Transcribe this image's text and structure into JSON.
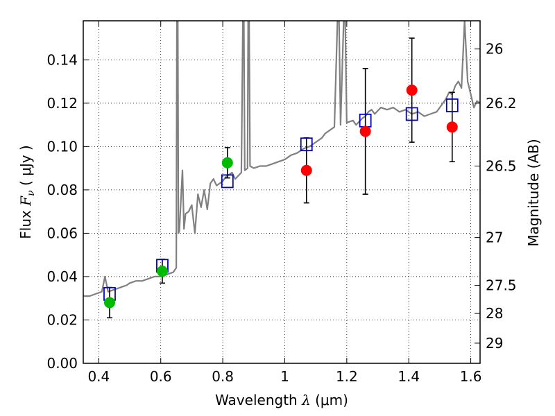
{
  "chart_data": {
    "type": "scatter",
    "xlabel": "Wavelength  λ (μm)",
    "ylabel": "Flux  F_ν  ( μJy )",
    "ylabel_right": "Magnitude (AB)",
    "xlim": [
      0.35,
      1.63
    ],
    "ylim": [
      0.0,
      0.158
    ],
    "grid": true,
    "x_ticks": [
      0.4,
      0.6,
      0.8,
      1.0,
      1.2,
      1.4,
      1.6
    ],
    "x_tick_labels": [
      "0.4",
      "0.6",
      "0.8",
      "1",
      "1.2",
      "1.4",
      "1.6"
    ],
    "y_ticks": [
      0.0,
      0.02,
      0.04,
      0.06,
      0.08,
      0.1,
      0.12,
      0.14
    ],
    "y_tick_labels": [
      "0.00",
      "0.02",
      "0.04",
      "0.06",
      "0.08",
      "0.10",
      "0.12",
      "0.14"
    ],
    "right_ticks": [
      {
        "label": "26",
        "flux": 0.145
      },
      {
        "label": "26.2",
        "flux": 0.12
      },
      {
        "label": "26.5",
        "flux": 0.091
      },
      {
        "label": "27",
        "flux": 0.058
      },
      {
        "label": "27.5",
        "flux": 0.036
      },
      {
        "label": "28",
        "flux": 0.023
      },
      {
        "label": "29",
        "flux": 0.0093
      }
    ],
    "model_spectrum": {
      "color": "#808080",
      "points": [
        [
          0.35,
          0.031
        ],
        [
          0.37,
          0.031
        ],
        [
          0.39,
          0.032
        ],
        [
          0.41,
          0.033
        ],
        [
          0.42,
          0.04
        ],
        [
          0.43,
          0.033
        ],
        [
          0.45,
          0.034
        ],
        [
          0.47,
          0.035
        ],
        [
          0.49,
          0.036
        ],
        [
          0.5,
          0.037
        ],
        [
          0.52,
          0.038
        ],
        [
          0.54,
          0.038
        ],
        [
          0.56,
          0.039
        ],
        [
          0.58,
          0.04
        ],
        [
          0.6,
          0.04
        ],
        [
          0.62,
          0.041
        ],
        [
          0.64,
          0.042
        ],
        [
          0.65,
          0.044
        ],
        [
          0.652,
          0.158
        ],
        [
          0.655,
          0.158
        ],
        [
          0.657,
          0.06
        ],
        [
          0.66,
          0.061
        ],
        [
          0.67,
          0.089
        ],
        [
          0.675,
          0.062
        ],
        [
          0.68,
          0.069
        ],
        [
          0.69,
          0.07
        ],
        [
          0.7,
          0.073
        ],
        [
          0.71,
          0.06
        ],
        [
          0.72,
          0.078
        ],
        [
          0.73,
          0.072
        ],
        [
          0.74,
          0.08
        ],
        [
          0.75,
          0.071
        ],
        [
          0.76,
          0.083
        ],
        [
          0.77,
          0.085
        ],
        [
          0.78,
          0.082
        ],
        [
          0.8,
          0.084
        ],
        [
          0.81,
          0.086
        ],
        [
          0.83,
          0.088
        ],
        [
          0.84,
          0.085
        ],
        [
          0.86,
          0.088
        ],
        [
          0.865,
          0.158
        ],
        [
          0.868,
          0.158
        ],
        [
          0.871,
          0.089
        ],
        [
          0.88,
          0.09
        ],
        [
          0.882,
          0.158
        ],
        [
          0.885,
          0.158
        ],
        [
          0.888,
          0.091
        ],
        [
          0.9,
          0.09
        ],
        [
          0.92,
          0.091
        ],
        [
          0.94,
          0.091
        ],
        [
          0.96,
          0.092
        ],
        [
          0.98,
          0.093
        ],
        [
          1.0,
          0.094
        ],
        [
          1.02,
          0.096
        ],
        [
          1.04,
          0.097
        ],
        [
          1.06,
          0.099
        ],
        [
          1.08,
          0.1
        ],
        [
          1.1,
          0.102
        ],
        [
          1.12,
          0.104
        ],
        [
          1.13,
          0.106
        ],
        [
          1.15,
          0.108
        ],
        [
          1.16,
          0.109
        ],
        [
          1.17,
          0.158
        ],
        [
          1.175,
          0.158
        ],
        [
          1.18,
          0.11
        ],
        [
          1.19,
          0.158
        ],
        [
          1.195,
          0.158
        ],
        [
          1.2,
          0.111
        ],
        [
          1.22,
          0.112
        ],
        [
          1.23,
          0.11
        ],
        [
          1.25,
          0.113
        ],
        [
          1.26,
          0.114
        ],
        [
          1.27,
          0.116
        ],
        [
          1.28,
          0.117
        ],
        [
          1.29,
          0.115
        ],
        [
          1.31,
          0.118
        ],
        [
          1.33,
          0.117
        ],
        [
          1.35,
          0.118
        ],
        [
          1.37,
          0.116
        ],
        [
          1.39,
          0.117
        ],
        [
          1.41,
          0.115
        ],
        [
          1.43,
          0.116
        ],
        [
          1.45,
          0.114
        ],
        [
          1.47,
          0.115
        ],
        [
          1.49,
          0.116
        ],
        [
          1.5,
          0.118
        ],
        [
          1.51,
          0.12
        ],
        [
          1.52,
          0.122
        ],
        [
          1.53,
          0.125
        ],
        [
          1.54,
          0.124
        ],
        [
          1.55,
          0.128
        ],
        [
          1.56,
          0.13
        ],
        [
          1.57,
          0.127
        ],
        [
          1.58,
          0.158
        ],
        [
          1.59,
          0.13
        ],
        [
          1.6,
          0.124
        ],
        [
          1.61,
          0.118
        ],
        [
          1.62,
          0.121
        ],
        [
          1.63,
          0.12
        ]
      ]
    },
    "model_boxes": {
      "color": "#0000cc",
      "points": [
        {
          "x": 0.435,
          "y": 0.032
        },
        {
          "x": 0.605,
          "y": 0.045
        },
        {
          "x": 0.815,
          "y": 0.084
        },
        {
          "x": 1.07,
          "y": 0.101
        },
        {
          "x": 1.26,
          "y": 0.112
        },
        {
          "x": 1.41,
          "y": 0.115
        },
        {
          "x": 1.54,
          "y": 0.119
        }
      ]
    },
    "observed_optical": {
      "color": "#00bb00",
      "points": [
        {
          "x": 0.435,
          "y": 0.028,
          "err": 0.007
        },
        {
          "x": 0.605,
          "y": 0.0425,
          "err": 0.0055
        },
        {
          "x": 0.815,
          "y": 0.0925,
          "err": 0.007
        }
      ]
    },
    "observed_nir": {
      "color": "#ff0000",
      "points": [
        {
          "x": 1.07,
          "y": 0.089,
          "err": 0.015
        },
        {
          "x": 1.26,
          "y": 0.107,
          "err": 0.029
        },
        {
          "x": 1.41,
          "y": 0.126,
          "err": 0.024
        },
        {
          "x": 1.54,
          "y": 0.109,
          "err": 0.016
        }
      ]
    }
  }
}
